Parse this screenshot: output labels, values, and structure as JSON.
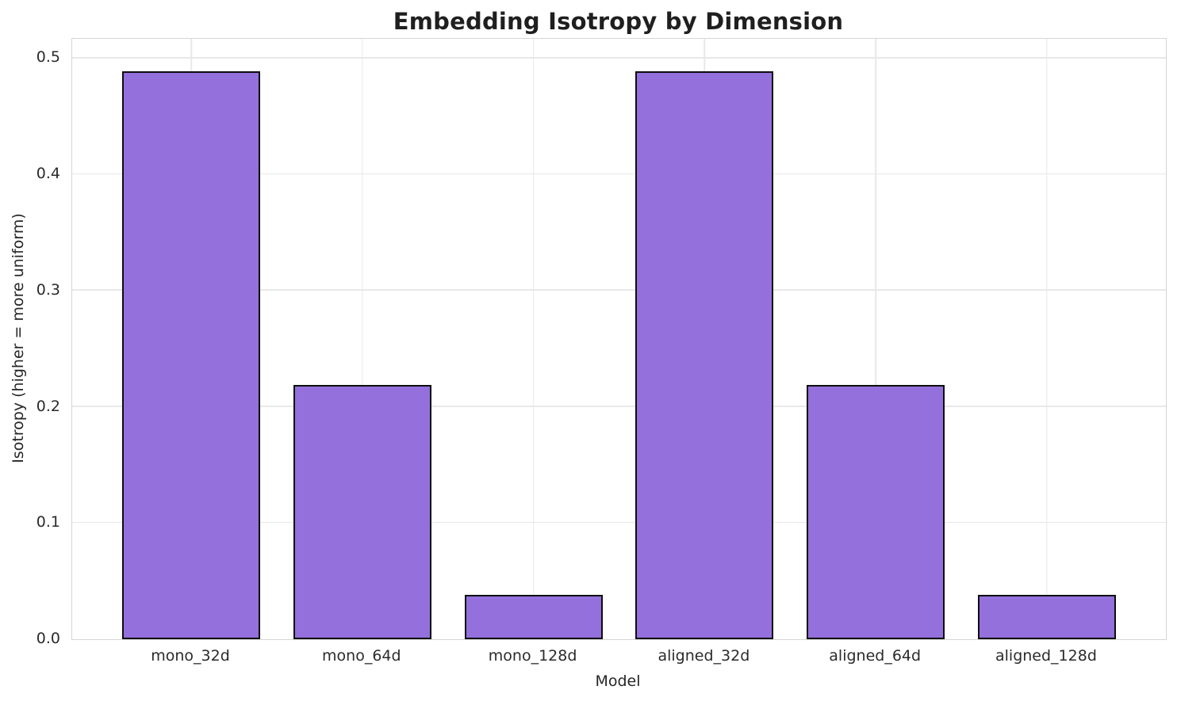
{
  "chart_data": {
    "type": "bar",
    "title": "Embedding Isotropy by Dimension",
    "xlabel": "Model",
    "ylabel": "Isotropy (higher = more uniform)",
    "categories": [
      "mono_32d",
      "mono_64d",
      "mono_128d",
      "aligned_32d",
      "aligned_64d",
      "aligned_128d"
    ],
    "values": [
      0.489,
      0.219,
      0.038,
      0.489,
      0.219,
      0.038
    ],
    "ytick_labels": [
      "0.0",
      "0.1",
      "0.2",
      "0.3",
      "0.4",
      "0.5"
    ],
    "ytick_values": [
      0.0,
      0.1,
      0.2,
      0.3,
      0.4,
      0.5
    ],
    "ylim": [
      0,
      0.5167
    ],
    "grid": true,
    "legend": "none",
    "colors": {
      "bar_fill": "#9370DB",
      "bar_edge": "#0d0d0d",
      "grid_line": "#e8e8e8",
      "spine": "#d6d6d6",
      "text": "#262626",
      "title_text": "#1f1f1f",
      "background": "#ffffff"
    }
  }
}
